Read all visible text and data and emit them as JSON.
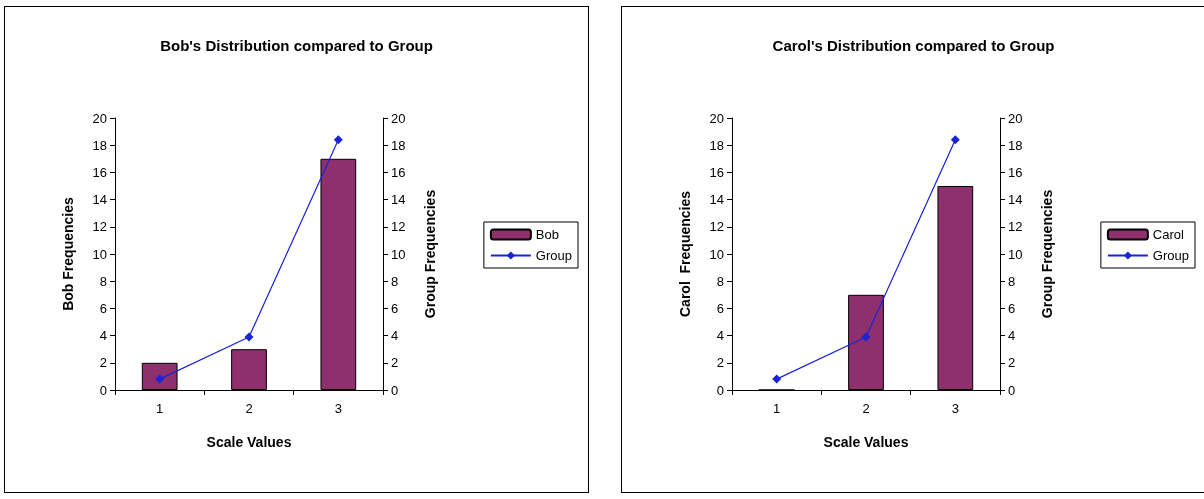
{
  "chart_data": [
    {
      "type": "bar",
      "title": "Bob's Distribution compared to Group",
      "xlabel": "Scale Values",
      "ylabel": "Bob Frequencies",
      "y2label": "Group Frequencies",
      "categories": [
        "1",
        "2",
        "3"
      ],
      "series": [
        {
          "name": "Bob",
          "color": "#8e2f6e",
          "values": [
            2,
            3,
            17
          ]
        },
        {
          "name": "Group",
          "type": "line",
          "axis": "y2",
          "color": "#1a23d6",
          "marker": "diamond",
          "line_style": "solid",
          "values": [
            0.8,
            3.9,
            18.4
          ]
        }
      ],
      "ylim": [
        0,
        20
      ],
      "yticks": [
        0,
        2,
        4,
        6,
        8,
        10,
        12,
        14,
        16,
        18,
        20
      ],
      "y2lim": [
        0,
        20
      ],
      "y2ticks": [
        0,
        2,
        4,
        6,
        8,
        10,
        12,
        14,
        16,
        18,
        20
      ],
      "grid": false,
      "legend": "right"
    },
    {
      "type": "bar",
      "title": "Carol's Distribution compared to Group",
      "xlabel": "Scale Values",
      "ylabel": "Carol  Frequencies",
      "y2label": "Group Frequencies",
      "categories": [
        "1",
        "2",
        "3"
      ],
      "series": [
        {
          "name": "Carol",
          "color": "#8e2f6e",
          "values": [
            0,
            7,
            15
          ]
        },
        {
          "name": "Group",
          "type": "line",
          "axis": "y2",
          "color": "#1a23d6",
          "marker": "diamond",
          "line_style": "solid",
          "values": [
            0.8,
            3.9,
            18.4
          ]
        }
      ],
      "ylim": [
        0,
        20
      ],
      "yticks": [
        0,
        2,
        4,
        6,
        8,
        10,
        12,
        14,
        16,
        18,
        20
      ],
      "y2lim": [
        0,
        20
      ],
      "y2ticks": [
        0,
        2,
        4,
        6,
        8,
        10,
        12,
        14,
        16,
        18,
        20
      ],
      "grid": false,
      "legend": "right"
    }
  ]
}
